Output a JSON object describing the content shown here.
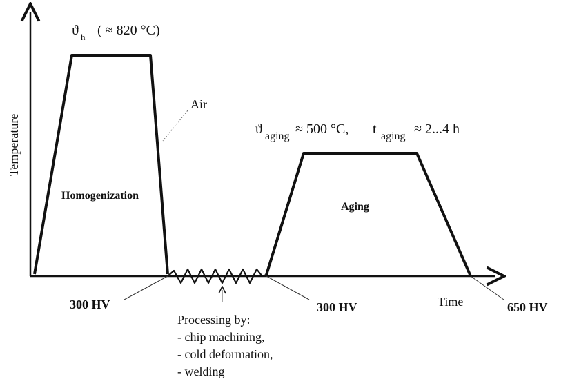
{
  "axes": {
    "y_label": "Temperature",
    "x_label": "Time"
  },
  "homogenization": {
    "symbol": "ϑ",
    "subscript": "h",
    "temp_note": "( ≈ 820 °C)",
    "stage_label": "Homogenization",
    "cooling_label": "Air"
  },
  "aging": {
    "symbol": "ϑ",
    "temp_subscript": "aging",
    "temp_value": "≈ 500 °C,",
    "time_symbol": "t",
    "time_subscript": "aging",
    "time_value": "≈ 2...4 h",
    "stage_label": "Aging"
  },
  "hardness": {
    "after_homogenization": "300 HV",
    "after_processing": "300 HV",
    "after_aging": "650 HV"
  },
  "processing": {
    "title": "Processing by:",
    "items": [
      "- chip machining,",
      "- cold deformation,",
      "- welding"
    ]
  },
  "colors": {
    "line": "#111111",
    "leader": "#666666"
  }
}
